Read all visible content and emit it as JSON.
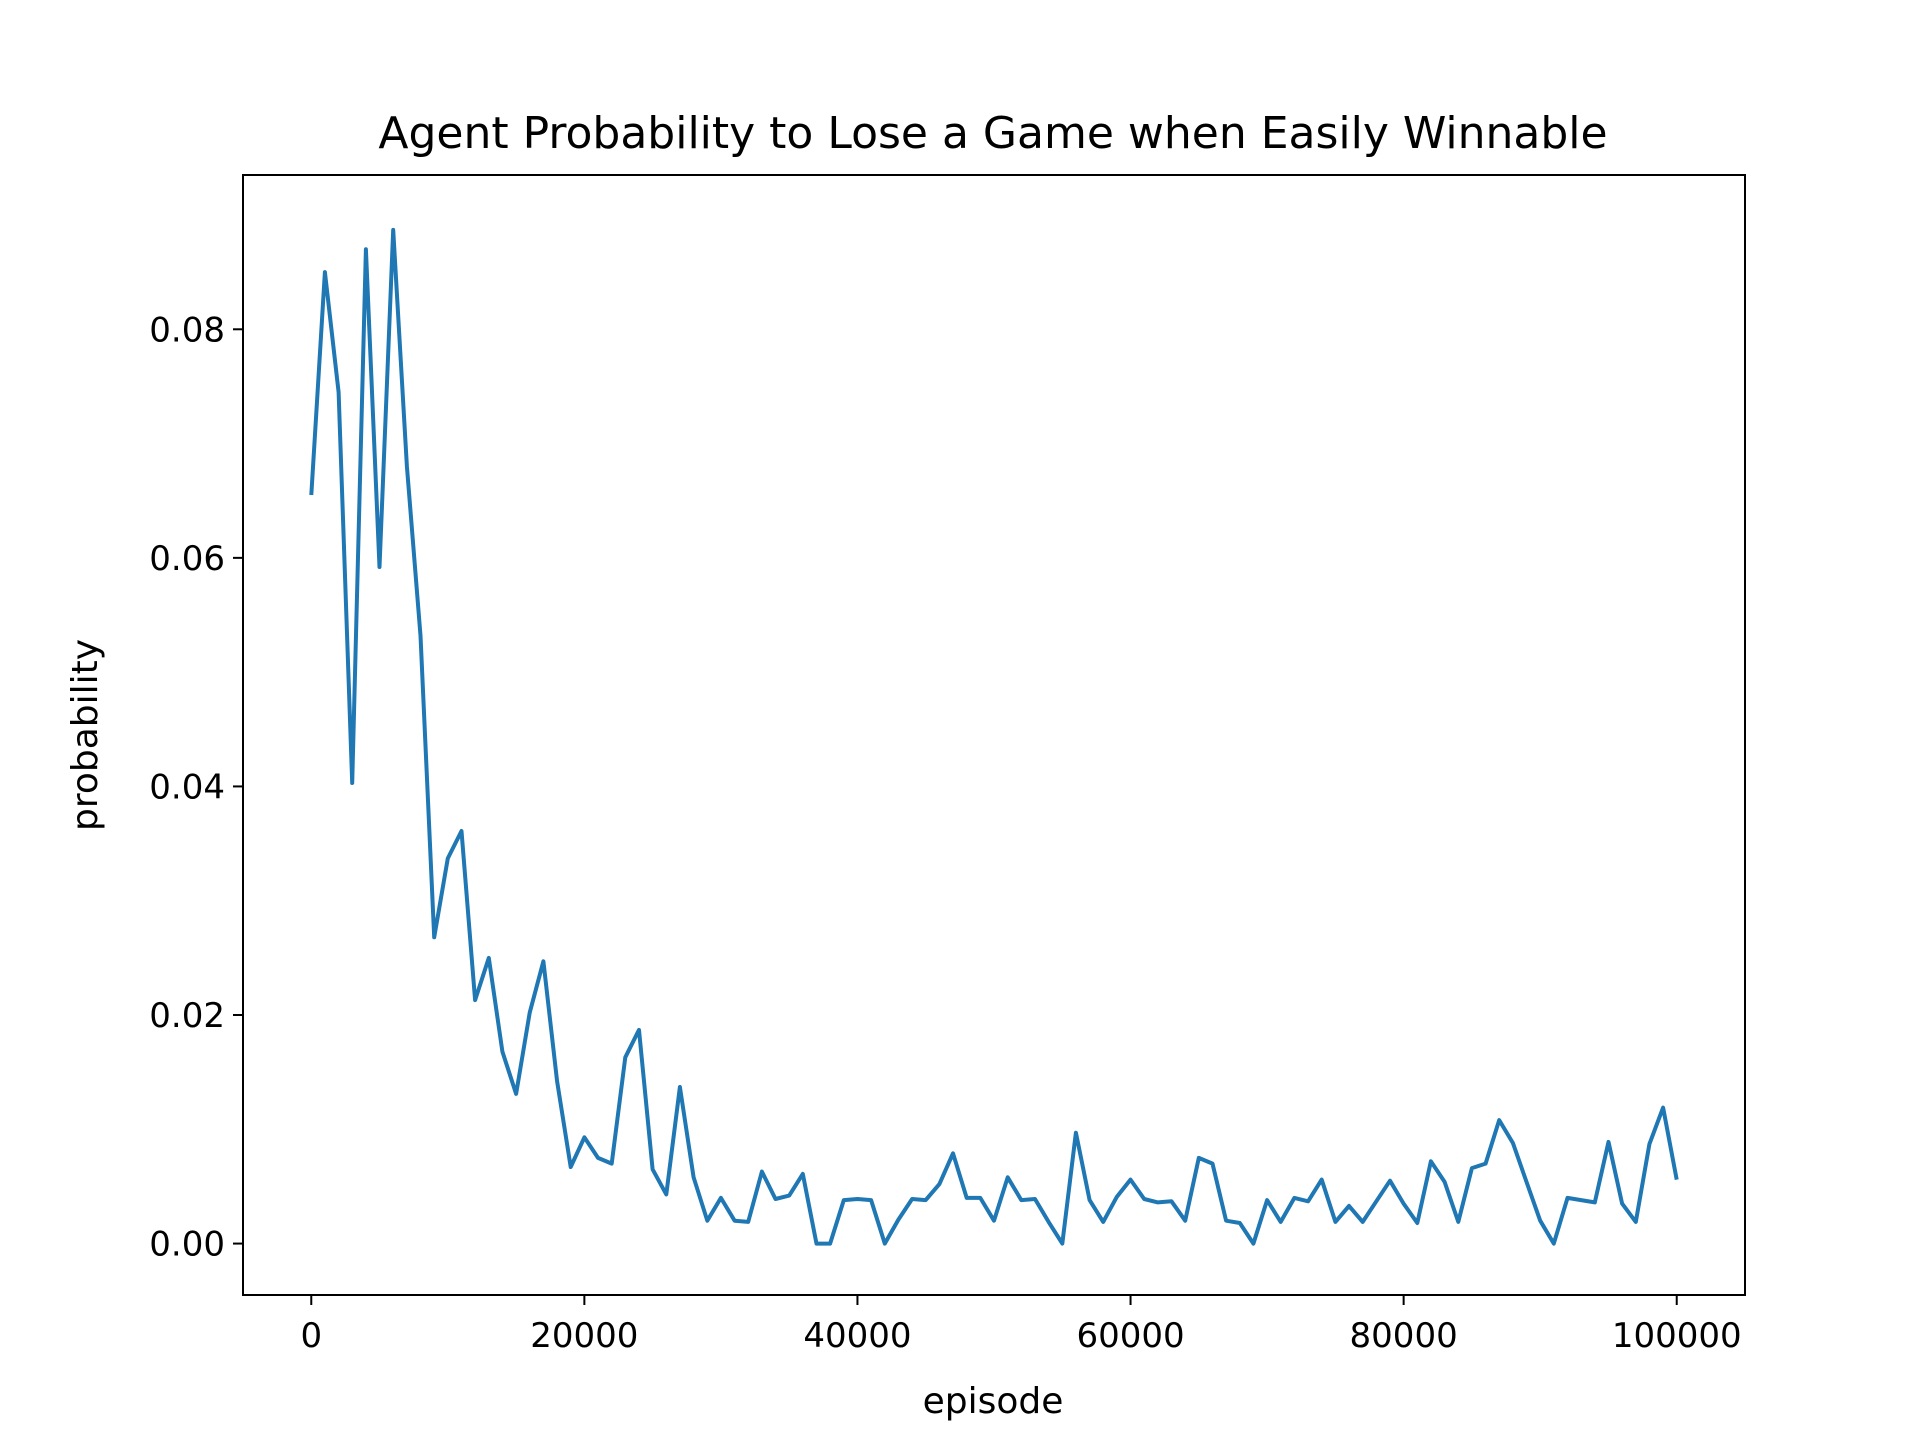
{
  "chart_data": {
    "type": "line",
    "title": "Agent Probability to Lose a Game when Easily Winnable",
    "xlabel": "episode",
    "ylabel": "probability",
    "xlim": [
      -5000,
      105000
    ],
    "ylim": [
      -0.0045,
      0.0935
    ],
    "xticks": [
      0,
      20000,
      40000,
      60000,
      80000,
      100000
    ],
    "xtick_labels": [
      "0",
      "20000",
      "40000",
      "60000",
      "80000",
      "100000"
    ],
    "yticks": [
      0.0,
      0.02,
      0.04,
      0.06,
      0.08
    ],
    "ytick_labels": [
      "0.00",
      "0.02",
      "0.04",
      "0.06",
      "0.08"
    ],
    "grid": false,
    "series": [
      {
        "color": "#1f77b4",
        "x": [
          0,
          1000,
          2000,
          3000,
          4000,
          5000,
          6000,
          7000,
          8000,
          9000,
          10000,
          11000,
          12000,
          13000,
          14000,
          15000,
          16000,
          17000,
          18000,
          19000,
          20000,
          21000,
          22000,
          23000,
          24000,
          25000,
          26000,
          27000,
          28000,
          29000,
          30000,
          31000,
          32000,
          33000,
          34000,
          35000,
          36000,
          37000,
          38000,
          39000,
          40000,
          41000,
          42000,
          43000,
          44000,
          45000,
          46000,
          47000,
          48000,
          49000,
          50000,
          51000,
          52000,
          53000,
          54000,
          55000,
          56000,
          57000,
          58000,
          59000,
          60000,
          61000,
          62000,
          63000,
          64000,
          65000,
          66000,
          67000,
          68000,
          69000,
          70000,
          71000,
          72000,
          73000,
          74000,
          75000,
          76000,
          77000,
          78000,
          79000,
          80000,
          81000,
          82000,
          83000,
          84000,
          85000,
          86000,
          87000,
          88000,
          89000,
          90000,
          91000,
          92000,
          93000,
          94000,
          95000,
          96000,
          97000,
          98000,
          99000,
          100000
        ],
        "values": [
          0.0655,
          0.085,
          0.0745,
          0.0403,
          0.087,
          0.0592,
          0.0887,
          0.068,
          0.0532,
          0.0268,
          0.0337,
          0.0361,
          0.0213,
          0.025,
          0.0168,
          0.0131,
          0.0202,
          0.0247,
          0.0142,
          0.0067,
          0.0093,
          0.0075,
          0.007,
          0.0163,
          0.0187,
          0.0065,
          0.0043,
          0.0137,
          0.0058,
          0.002,
          0.004,
          0.002,
          0.0019,
          0.0063,
          0.0039,
          0.0042,
          0.0061,
          0.0,
          0.0,
          0.0038,
          0.0039,
          0.0038,
          0.0,
          0.0021,
          0.0039,
          0.0038,
          0.0052,
          0.0079,
          0.004,
          0.004,
          0.002,
          0.0058,
          0.0038,
          0.0039,
          0.0019,
          0.0,
          0.0097,
          0.0038,
          0.0019,
          0.0041,
          0.0056,
          0.0039,
          0.0036,
          0.0037,
          0.002,
          0.0075,
          0.007,
          0.002,
          0.0018,
          0.0,
          0.0038,
          0.0019,
          0.004,
          0.0037,
          0.0056,
          0.0019,
          0.0033,
          0.0019,
          0.0037,
          0.0055,
          0.0035,
          0.0018,
          0.0072,
          0.0054,
          0.0019,
          0.0066,
          0.007,
          0.0108,
          0.0088,
          0.0054,
          0.002,
          0.0,
          0.004,
          0.0038,
          0.0036,
          0.0089,
          0.0035,
          0.0019,
          0.0087,
          0.0119,
          0.0056
        ]
      }
    ]
  }
}
